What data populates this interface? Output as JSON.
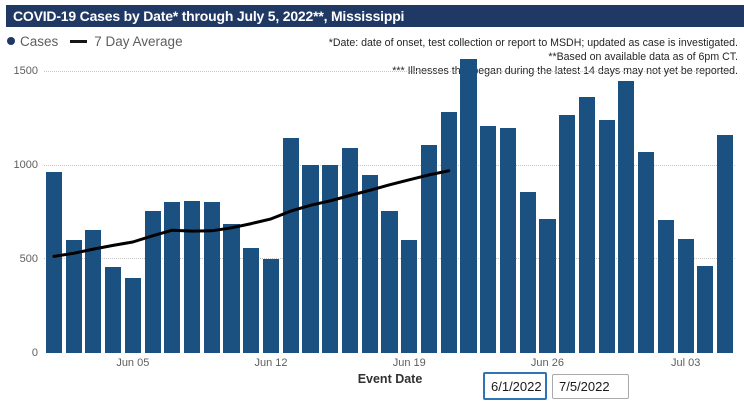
{
  "window": {
    "title": "COVID-19 Cases by Date* through July 5, 2022**, Mississippi"
  },
  "legend": {
    "cases_label": "Cases",
    "avg_label": "7 Day Average"
  },
  "annotations": {
    "line1": "*Date: date of onset, test collection or report to MSDH; updated as case is investigated.",
    "line2": "**Based on available data as of 6pm CT.",
    "line3": "*** Illnesses that began during the latest 14 days may not yet be reported."
  },
  "axes": {
    "x_title": "Event Date",
    "y_ticks": [
      {
        "value": 0,
        "label": "0"
      },
      {
        "value": 500,
        "label": "500"
      },
      {
        "value": 1000,
        "label": "1000"
      },
      {
        "value": 1500,
        "label": "1500"
      }
    ],
    "x_ticks": [
      {
        "index": 4,
        "label": "Jun 05"
      },
      {
        "index": 11,
        "label": "Jun 12"
      },
      {
        "index": 18,
        "label": "Jun 19"
      },
      {
        "index": 25,
        "label": "Jun 26"
      },
      {
        "index": 32,
        "label": "Jul 03"
      }
    ]
  },
  "date_inputs": {
    "start": "6/1/2022",
    "end": "7/5/2022"
  },
  "colors": {
    "bar": "#1B5180",
    "line": "#000000",
    "title_bg": "#1F3864",
    "title_text": "#FFFFFF",
    "legend_dot": "#1F3864",
    "axis_text": "#605E5C",
    "annotation_text": "#252423",
    "gridline": "#C8C6C4",
    "input_focus_border": "#2E75B6",
    "input_border": "#A9A9A9"
  },
  "chart_data": {
    "type": "bar",
    "title": "COVID-19 Cases by Date* through July 5, 2022**, Mississippi",
    "xlabel": "Event Date",
    "ylabel": "",
    "ylim": [
      0,
      1600
    ],
    "grid": "horizontal-dotted",
    "legend_position": "top-left",
    "x": [
      "Jun 1",
      "Jun 2",
      "Jun 3",
      "Jun 4",
      "Jun 5",
      "Jun 6",
      "Jun 7",
      "Jun 8",
      "Jun 9",
      "Jun 10",
      "Jun 11",
      "Jun 12",
      "Jun 13",
      "Jun 14",
      "Jun 15",
      "Jun 16",
      "Jun 17",
      "Jun 18",
      "Jun 19",
      "Jun 20",
      "Jun 21",
      "Jun 22",
      "Jun 23",
      "Jun 24",
      "Jun 25",
      "Jun 26",
      "Jun 27",
      "Jun 28",
      "Jun 29",
      "Jun 30",
      "Jul 1",
      "Jul 2",
      "Jul 3",
      "Jul 4",
      "Jul 5"
    ],
    "series": [
      {
        "name": "Cases",
        "type": "bar",
        "values": [
          965,
          605,
          655,
          460,
          400,
          755,
          805,
          810,
          805,
          690,
          560,
          500,
          1145,
          1005,
          1005,
          1095,
          950,
          760,
          605,
          1110,
          1285,
          1570,
          1210,
          1200,
          860,
          715,
          1270,
          1365,
          1245,
          1450,
          1070,
          710,
          610,
          465,
          1165
        ]
      },
      {
        "name": "7 Day Average",
        "type": "line",
        "values": [
          515,
          532,
          554,
          574,
          592,
          625,
          655,
          650,
          652,
          668,
          690,
          715,
          757,
          788,
          812,
          840,
          868,
          897,
          924,
          950,
          972,
          null,
          null,
          null,
          null,
          null,
          null,
          null,
          null,
          null,
          null,
          null,
          null,
          null,
          null
        ]
      }
    ]
  }
}
